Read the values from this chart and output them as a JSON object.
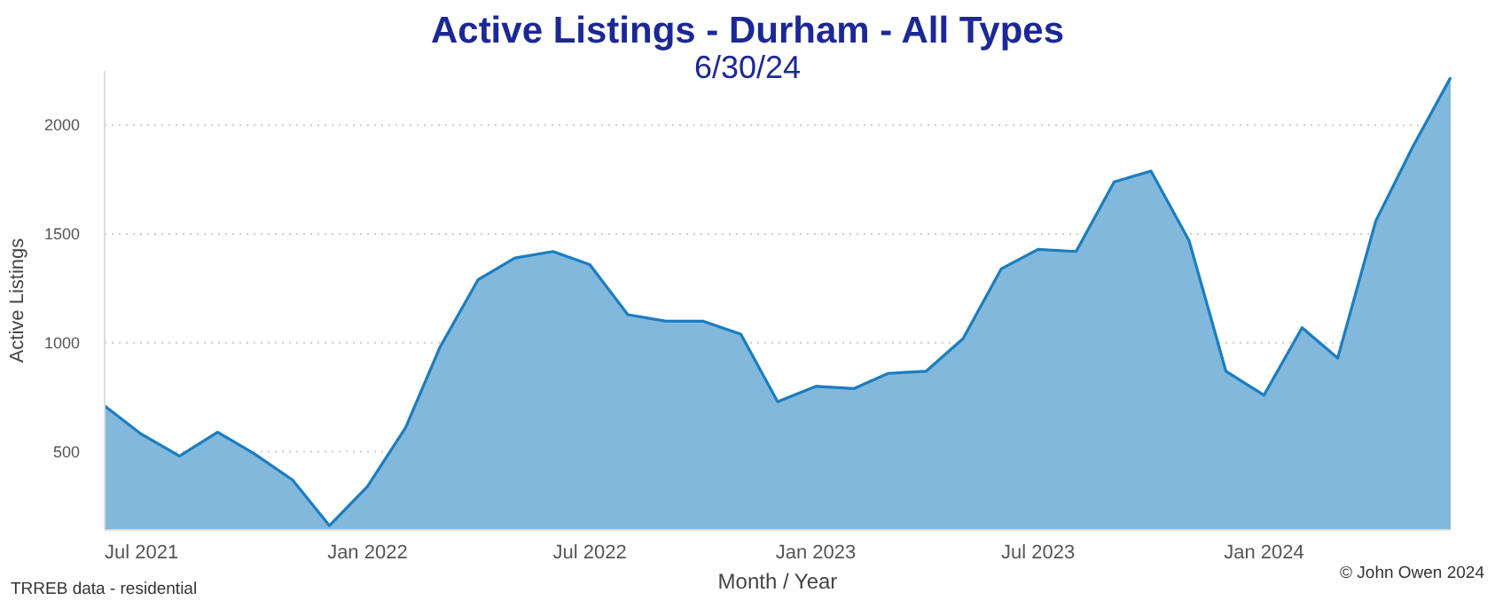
{
  "chart_data": {
    "type": "area",
    "title": "Active Listings - Durham - All Types",
    "subtitle": "6/30/24",
    "xlabel": "Month / Year",
    "ylabel": "Active Listings",
    "annotations": [
      "TRREB data - residential",
      "© John Owen 2024"
    ],
    "x": [
      "2021-06",
      "2021-07",
      "2021-08",
      "2021-09",
      "2021-10",
      "2021-11",
      "2021-12",
      "2022-01",
      "2022-02",
      "2022-03",
      "2022-04",
      "2022-05",
      "2022-06",
      "2022-07",
      "2022-08",
      "2022-09",
      "2022-10",
      "2022-11",
      "2022-12",
      "2023-01",
      "2023-02",
      "2023-03",
      "2023-04",
      "2023-05",
      "2023-06",
      "2023-07",
      "2023-08",
      "2023-09",
      "2023-10",
      "2023-11",
      "2023-12",
      "2024-01",
      "2024-02",
      "2024-03",
      "2024-04",
      "2024-05",
      "2024-06"
    ],
    "series": [
      {
        "color": "#1b7dbf",
        "values": [
          710,
          580,
          480,
          590,
          490,
          370,
          160,
          340,
          610,
          980,
          1290,
          1390,
          1420,
          1360,
          1130,
          1100,
          1100,
          1040,
          730,
          800,
          790,
          860,
          870,
          1020,
          1340,
          1430,
          1420,
          1740,
          1790,
          1470,
          870,
          760,
          1070,
          930,
          1560,
          1900,
          2220
        ]
      }
    ],
    "xlim": [
      "2021-06",
      "2024-06"
    ],
    "xticks": [
      {
        "value": "2021-07",
        "label": "Jul 2021"
      },
      {
        "value": "2022-01",
        "label": "Jan 2022"
      },
      {
        "value": "2022-07",
        "label": "Jul 2022"
      },
      {
        "value": "2023-01",
        "label": "Jan 2023"
      },
      {
        "value": "2023-07",
        "label": "Jul 2023"
      },
      {
        "value": "2024-01",
        "label": "Jan 2024"
      }
    ],
    "ylim": [
      140,
      2250
    ],
    "yticks": [
      500,
      1000,
      1500,
      2000
    ],
    "grid": "y"
  }
}
